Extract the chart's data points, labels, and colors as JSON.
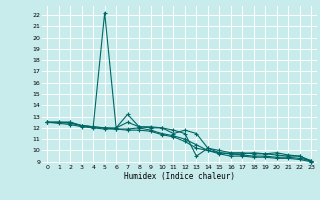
{
  "xlabel": "Humidex (Indice chaleur)",
  "ylabel": "",
  "bg_color": "#c8ecec",
  "grid_color": "#ffffff",
  "line_color": "#006666",
  "xlim": [
    -0.5,
    23.5
  ],
  "ylim": [
    8.8,
    22.8
  ],
  "yticks": [
    9,
    10,
    11,
    12,
    13,
    14,
    15,
    16,
    17,
    18,
    19,
    20,
    21,
    22
  ],
  "xticks": [
    0,
    1,
    2,
    3,
    4,
    5,
    6,
    7,
    8,
    9,
    10,
    11,
    12,
    13,
    14,
    15,
    16,
    17,
    18,
    19,
    20,
    21,
    22,
    23
  ],
  "series": [
    [
      12.5,
      12.5,
      12.5,
      12.2,
      12.1,
      22.2,
      12.0,
      13.2,
      12.1,
      12.0,
      12.0,
      11.8,
      11.5,
      9.5,
      10.2,
      10.0,
      9.8,
      9.8,
      9.7,
      9.7,
      9.6,
      9.5,
      9.5,
      9.0
    ],
    [
      12.5,
      12.5,
      12.5,
      12.2,
      12.1,
      12.0,
      12.0,
      12.5,
      12.1,
      12.1,
      12.0,
      11.5,
      11.8,
      11.5,
      10.2,
      9.8,
      9.7,
      9.7,
      9.8,
      9.7,
      9.8,
      9.6,
      9.5,
      9.1
    ],
    [
      12.5,
      12.5,
      12.4,
      12.2,
      12.1,
      12.0,
      11.9,
      11.9,
      12.0,
      11.8,
      11.5,
      11.3,
      11.0,
      10.5,
      10.0,
      9.8,
      9.7,
      9.6,
      9.5,
      9.5,
      9.4,
      9.4,
      9.3,
      9.1
    ],
    [
      12.5,
      12.4,
      12.3,
      12.1,
      12.0,
      11.9,
      11.9,
      11.8,
      11.8,
      11.7,
      11.4,
      11.2,
      10.8,
      10.2,
      10.0,
      9.7,
      9.5,
      9.5,
      9.4,
      9.4,
      9.3,
      9.3,
      9.2,
      9.0
    ]
  ],
  "tick_fontsize": 4.5,
  "xlabel_fontsize": 5.5,
  "linewidth": 0.8,
  "markersize": 3,
  "markeredgewidth": 0.8
}
